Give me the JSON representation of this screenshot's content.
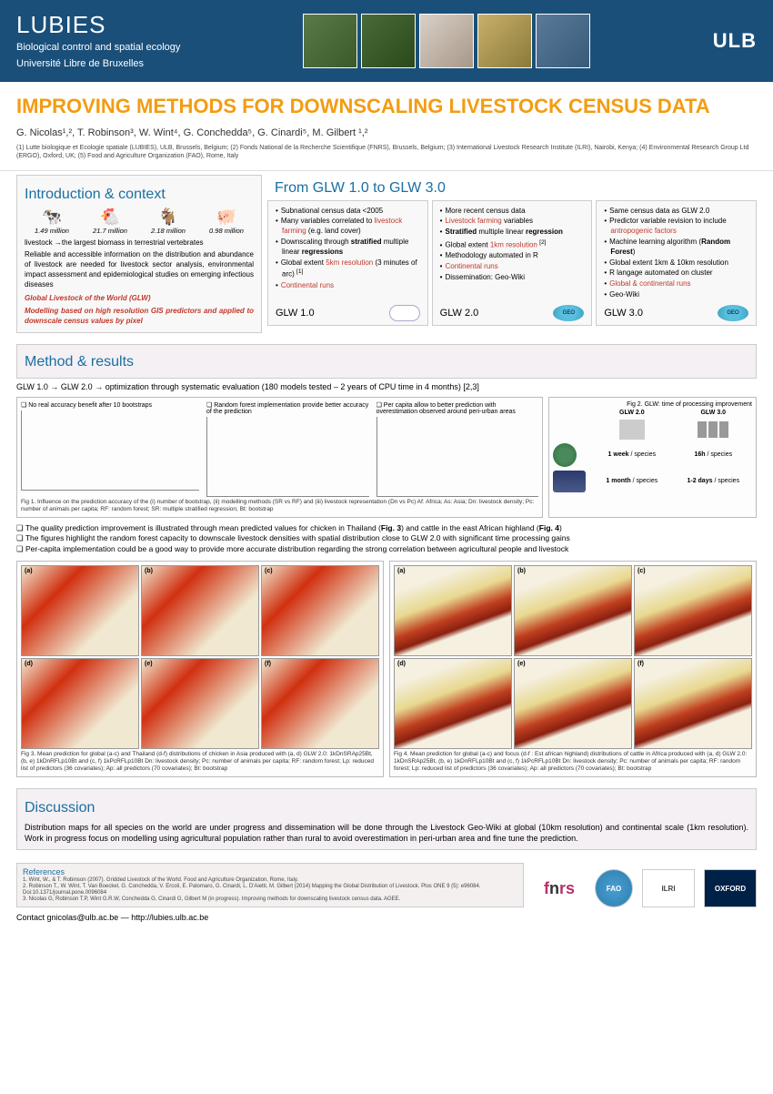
{
  "header": {
    "org": "LUBIES",
    "dept": "Biological control and spatial ecology",
    "univ": "Université Libre de Bruxelles",
    "ulb": "ULB"
  },
  "title": "IMPROVING METHODS FOR DOWNSCALING LIVESTOCK CENSUS DATA",
  "authors": "G. Nicolas¹,², T. Robinson³, W. Wint⁴, G. Conchedda⁵, G. Cinardi⁵, M. Gilbert ¹,²",
  "affiliations": "(1) Lutte biologique et Ecologie spatiale (LUBIES), ULB, Brussels, Belgium; (2) Fonds National de la Recherche Scientifique (FNRS), Brussels, Belgium; (3) International Livestock Research Institute (ILRI), Nairobi, Kenya; (4) Environmental Research Group Ltd (ERGO), Oxford, UK; (5) Food and Agriculture Organization (FAO), Rome, Italy",
  "intro": {
    "heading": "Introduction & context",
    "animals": [
      {
        "icon": "🐄",
        "count": "1.49 million"
      },
      {
        "icon": "🐔",
        "count": "21.7 million"
      },
      {
        "icon": "🐐",
        "count": "2.18 million"
      },
      {
        "icon": "🐖",
        "count": "0.98 million"
      }
    ],
    "line1": "livestock →the largest biomass in terrestrial vertebrates",
    "para": "Reliable and accessible information on the distribution and abundance of livestock are needed for livestock sector analysis, environmental impact assessment and epidemiological studies on emerging infectious diseases",
    "glw_title": "Global Livestock of the World (GLW)",
    "glw_sub": "Modelling based on high resolution GIS predictors and applied to downscale census values by pixel"
  },
  "glw_heading": "From GLW 1.0 to GLW 3.0",
  "glw1": {
    "label": "GLW 1.0",
    "items": [
      "Subnational census data <2005",
      "Many variables correlated to <span class='red'>livestock farming</span> (e.g. land cover)",
      "Downscaling through <b>stratified</b> multiple linear <b>regressions</b>",
      "Global extent <span class='red'>5km resolution</span> (3 minutes of arc) <sup>[1]</sup>",
      "<span class='red'>Continental runs</span>"
    ]
  },
  "glw2": {
    "label": "GLW 2.0",
    "items": [
      "More recent census data",
      "<span class='red'>Livestock farming</span> variables",
      "<b>Stratified</b> multiple linear <b>regression</b>",
      "Global extent <span class='red'>1km resolution</span> <sup>[2]</sup>",
      "Methodology automated in R",
      "<span class='red'>Continental runs</span>",
      "Dissemination: Geo-Wiki"
    ]
  },
  "glw3": {
    "label": "GLW 3.0",
    "items": [
      "Same census data as GLW 2.0",
      "Predictor variable revision to include <span class='red'>antropogenic factors</span>",
      "Machine learning algorithm (<b>Random Forest</b>)",
      "Global extent 1km & 10km resolution",
      "R langage automated on cluster",
      "<span class='red'>Global & continental runs</span>",
      "Geo-Wiki"
    ]
  },
  "method": {
    "heading": "Method & results",
    "subtitle": "GLW 1.0 → GLW 2.0 → optimization through systematic evaluation (180 models tested – 2 years of CPU time in 4 months) [2,3]",
    "chart_titles": [
      "❏ No real accuracy benefit after 10 bootstraps",
      "❏ Random forest implementation provide better accuracy of the prediction",
      "❏ Per capita allow to better prediction with overestimation observed around peri-urban areas"
    ],
    "fig2_title": "Fig 2. GLW: time of processing improvement",
    "fig2_cols": [
      "GLW 2.0",
      "GLW 3.0"
    ],
    "fig2_rows": [
      {
        "icon": "globe",
        "v1": "1 week / species",
        "v2": "16h / species"
      },
      {
        "icon": "map",
        "v1": "1 month / species",
        "v2": "1-2 days / species"
      }
    ],
    "fig1_caption": "Fig 1. Influence on the prediction accuracy of the (i) number of bootstrap, (ii) modelling methods (SR vs RF) and (iii) livestock representation (Dn vs Pc)\nAf: Africa; As: Asia; Dn: livestock density; Pc: number of animals per capita; RF: random forest; SR: multiple stratified regression; Bt: bootstrap",
    "bullets": [
      "The quality prediction improvement is illustrated through mean predicted values for chicken in Thailand (<b>Fig. 3</b>) and cattle in the east African highland (<b>Fig. 4</b>)",
      "The figures highlight the random forest capacity to downscale livestock densities with spatial distribution close to GLW 2.0 with significant time processing gains",
      "Per-capita implementation could be a good way to provide more accurate distribution regarding the strong correlation between agricultural people and livestock"
    ],
    "fig3_caption": "Fig 3. Mean prediction for global (a-c) and Thailand (d-f) distributions of chicken in Asia produced with (a, d) GLW 2.0: 1kDnSRAp25Bt, (b, e) 1kDnRFLp10Bt and (c, f) 1kPcRFLp10Bt\nDn: livestock density; Pc: number of animals per capita; RF: random forest; Lp: reduced list of predictors (36 covariates); Ap: all predictors (70 covariates); Bt: bootstrap",
    "fig4_caption": "Fig 4. Mean prediction for global (a-c) and focus (d-f : Est african highland) distributions of cattle in Africa produced with (a, d) GLW 2.0: 1kDnSRAp25Bt, (b, e) 1kDnRFLp10Bt and (c, f) 1kPcRFLp10Bt\nDn: livestock density; Pc: number of animals per capita; RF: random forest; Lp: reduced list of predictors (36 covariates); Ap: all predictors (70 covariates); Bt: bootstrap",
    "map_labels": [
      "(a)",
      "(b)",
      "(c)",
      "(d)",
      "(e)",
      "(f)"
    ]
  },
  "discussion": {
    "heading": "Discussion",
    "text": "Distribution maps for all species on the world are under progress and dissemination will be done through the Livestock Geo-Wiki at global (10km resolution) and continental scale (1km resolution). Work in progress focus on modelling using agricultural population rather than rural to avoid overestimation in peri-urban area and fine tune the prediction."
  },
  "refs": {
    "heading": "References",
    "items": [
      "1. Wint, W., & T. Robinson (2007). Gridded Livestock of the World. Food and Agriculture Organization, Rome, Italy.",
      "2. Robinson T., W. Wint, T. Van Boeckel, G. Conchedda, V. Ercoli, E. Palomaro, G. Cinardi, L. D'Aietti, M. Gilbert (2014) Mapping the Global Distribution of Livestock. Plos ONE 9 (5): e96084. Doi:10.1371/journal.pone.0096084",
      "3. Nicolas G, Robinson T.P, Wint G.R.W, Conchedda G, Cinardi G, Gilbert M (in progress). Improving methods for downscaling livestock census data. AGEE."
    ]
  },
  "contact": "Contact  gnicolas@ulb.ac.be  —  http://lubies.ulb.ac.be",
  "logos": [
    "fnrs",
    "FAO",
    "ILRI",
    "OXFORD"
  ],
  "colors": {
    "header_bg": "#1a4f7a",
    "title": "#f39c12",
    "section": "#1a6fa0",
    "accent_red": "#c0392b"
  }
}
